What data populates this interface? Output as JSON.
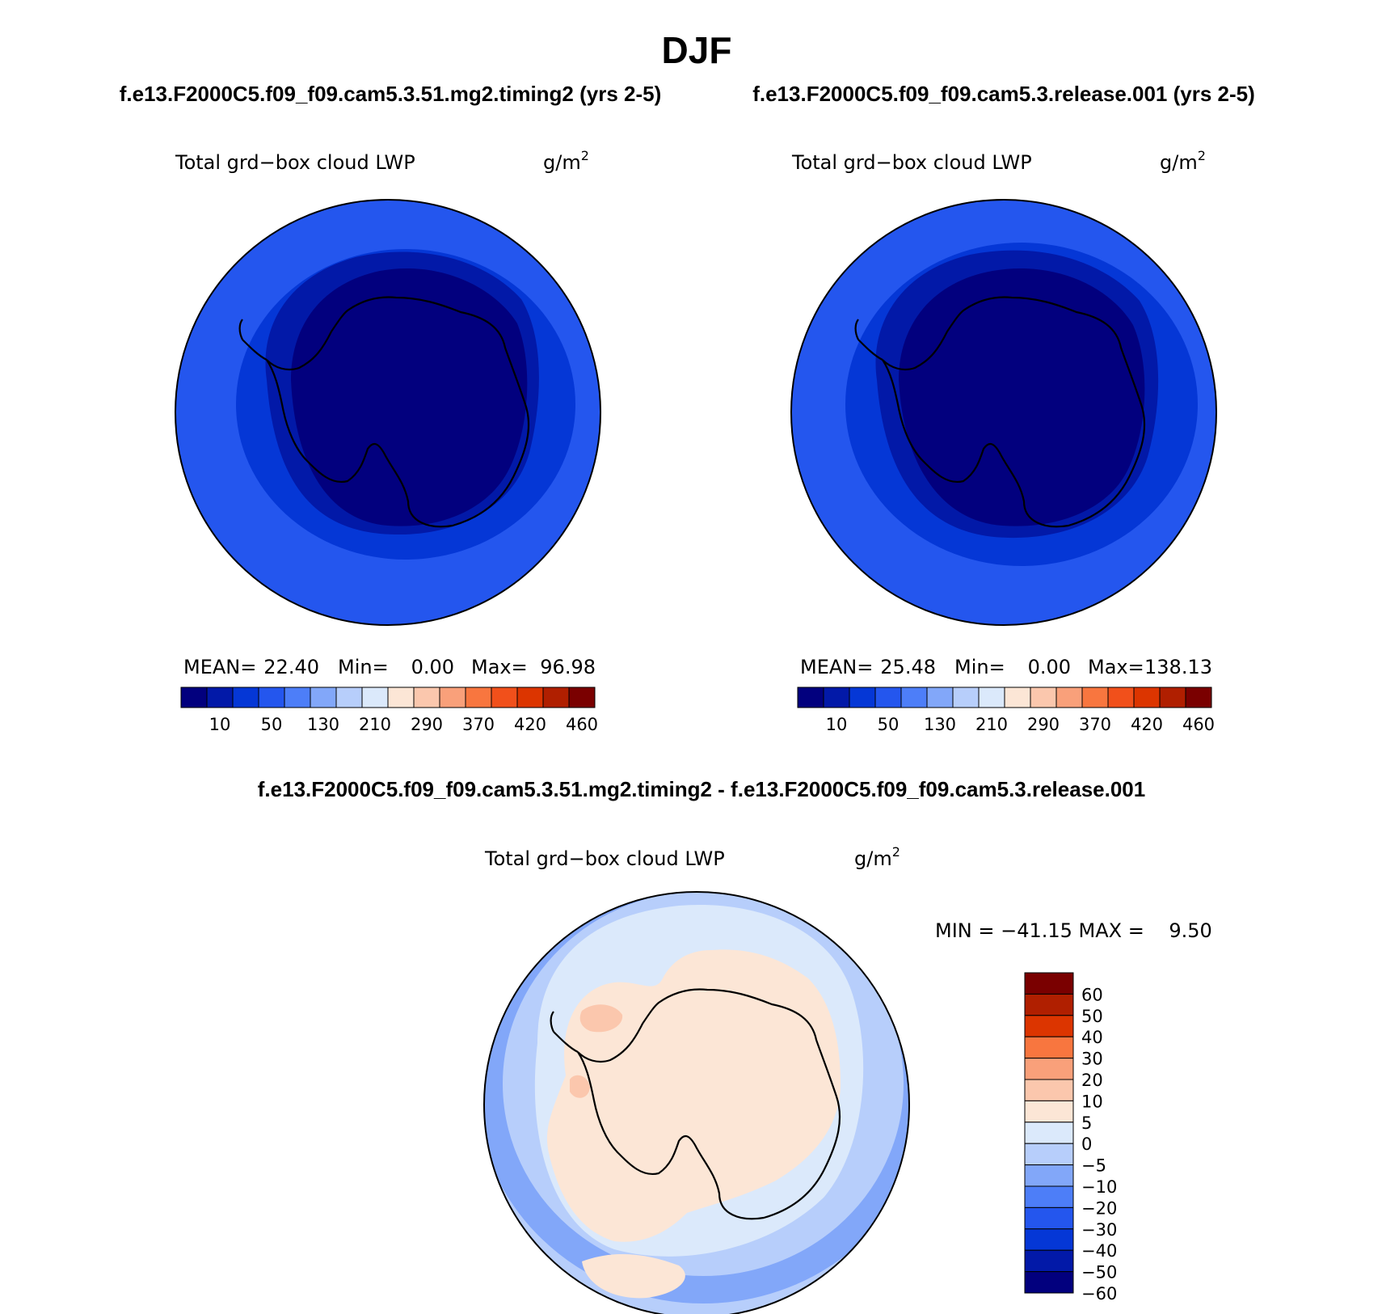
{
  "season": "DJF",
  "panels": [
    {
      "case_title": "f.e13.F2000C5.f09_f09.cam5.3.51.mg2.timing2 (yrs 2-5)",
      "variable": "Total grd−box cloud LWP",
      "units_base": "g/m",
      "units_exp": "2",
      "stats": {
        "mean_label": "MEAN=",
        "mean": "22.40",
        "min_label": "Min=",
        "min": "0.00",
        "max_label": "Max=",
        "max": "96.98"
      }
    },
    {
      "case_title": "f.e13.F2000C5.f09_f09.cam5.3.release.001 (yrs 2-5)",
      "variable": "Total grd−box cloud LWP",
      "units_base": "g/m",
      "units_exp": "2",
      "stats": {
        "mean_label": "MEAN=",
        "mean": "25.48",
        "min_label": "Min=",
        "min": "0.00",
        "max_label": "Max=",
        "max": "138.13"
      }
    }
  ],
  "colorbar_horizontal": {
    "colors": [
      "#02007e",
      "#0219a8",
      "#0537d6",
      "#2456ee",
      "#4d7ef8",
      "#82a7f9",
      "#b7cefb",
      "#dbe9fb",
      "#fce6d6",
      "#fbc7ad",
      "#f9a07a",
      "#f8763f",
      "#f1501b",
      "#dc3500",
      "#b01f00",
      "#7a0000"
    ],
    "labels": [
      "10",
      "50",
      "130",
      "210",
      "290",
      "370",
      "420",
      "460"
    ]
  },
  "difference": {
    "title": "f.e13.F2000C5.f09_f09.cam5.3.51.mg2.timing2 - f.e13.F2000C5.f09_f09.cam5.3.release.001",
    "variable": "Total grd−box cloud LWP",
    "units_base": "g/m",
    "units_exp": "2",
    "minmax_text": "MIN = −41.15 MAX =    9.50",
    "colorbar_colors": [
      "#7a0000",
      "#b01f00",
      "#dc3500",
      "#f8763f",
      "#f9a07a",
      "#fbc7ad",
      "#fce6d6",
      "#dbe9fb",
      "#b7cefb",
      "#82a7f9",
      "#4d7ef8",
      "#2456ee",
      "#0537d6",
      "#0219a8",
      "#02007e"
    ],
    "colorbar_labels": [
      "60",
      "50",
      "40",
      "30",
      "20",
      "10",
      "5",
      "0",
      "−5",
      "−10",
      "−20",
      "−30",
      "−40",
      "−50",
      "−60"
    ]
  },
  "map_colors": {
    "model_outer": "#2456ee",
    "model_ring": "#0537d6",
    "model_inner": "#0219a8",
    "model_core": "#02007e",
    "diff_ocean": "#dbe9fb",
    "diff_ocean2": "#b7cefb",
    "diff_blue": "#82a7f9",
    "diff_land": "#fce6d6",
    "diff_pos": "#fbc7ad"
  }
}
